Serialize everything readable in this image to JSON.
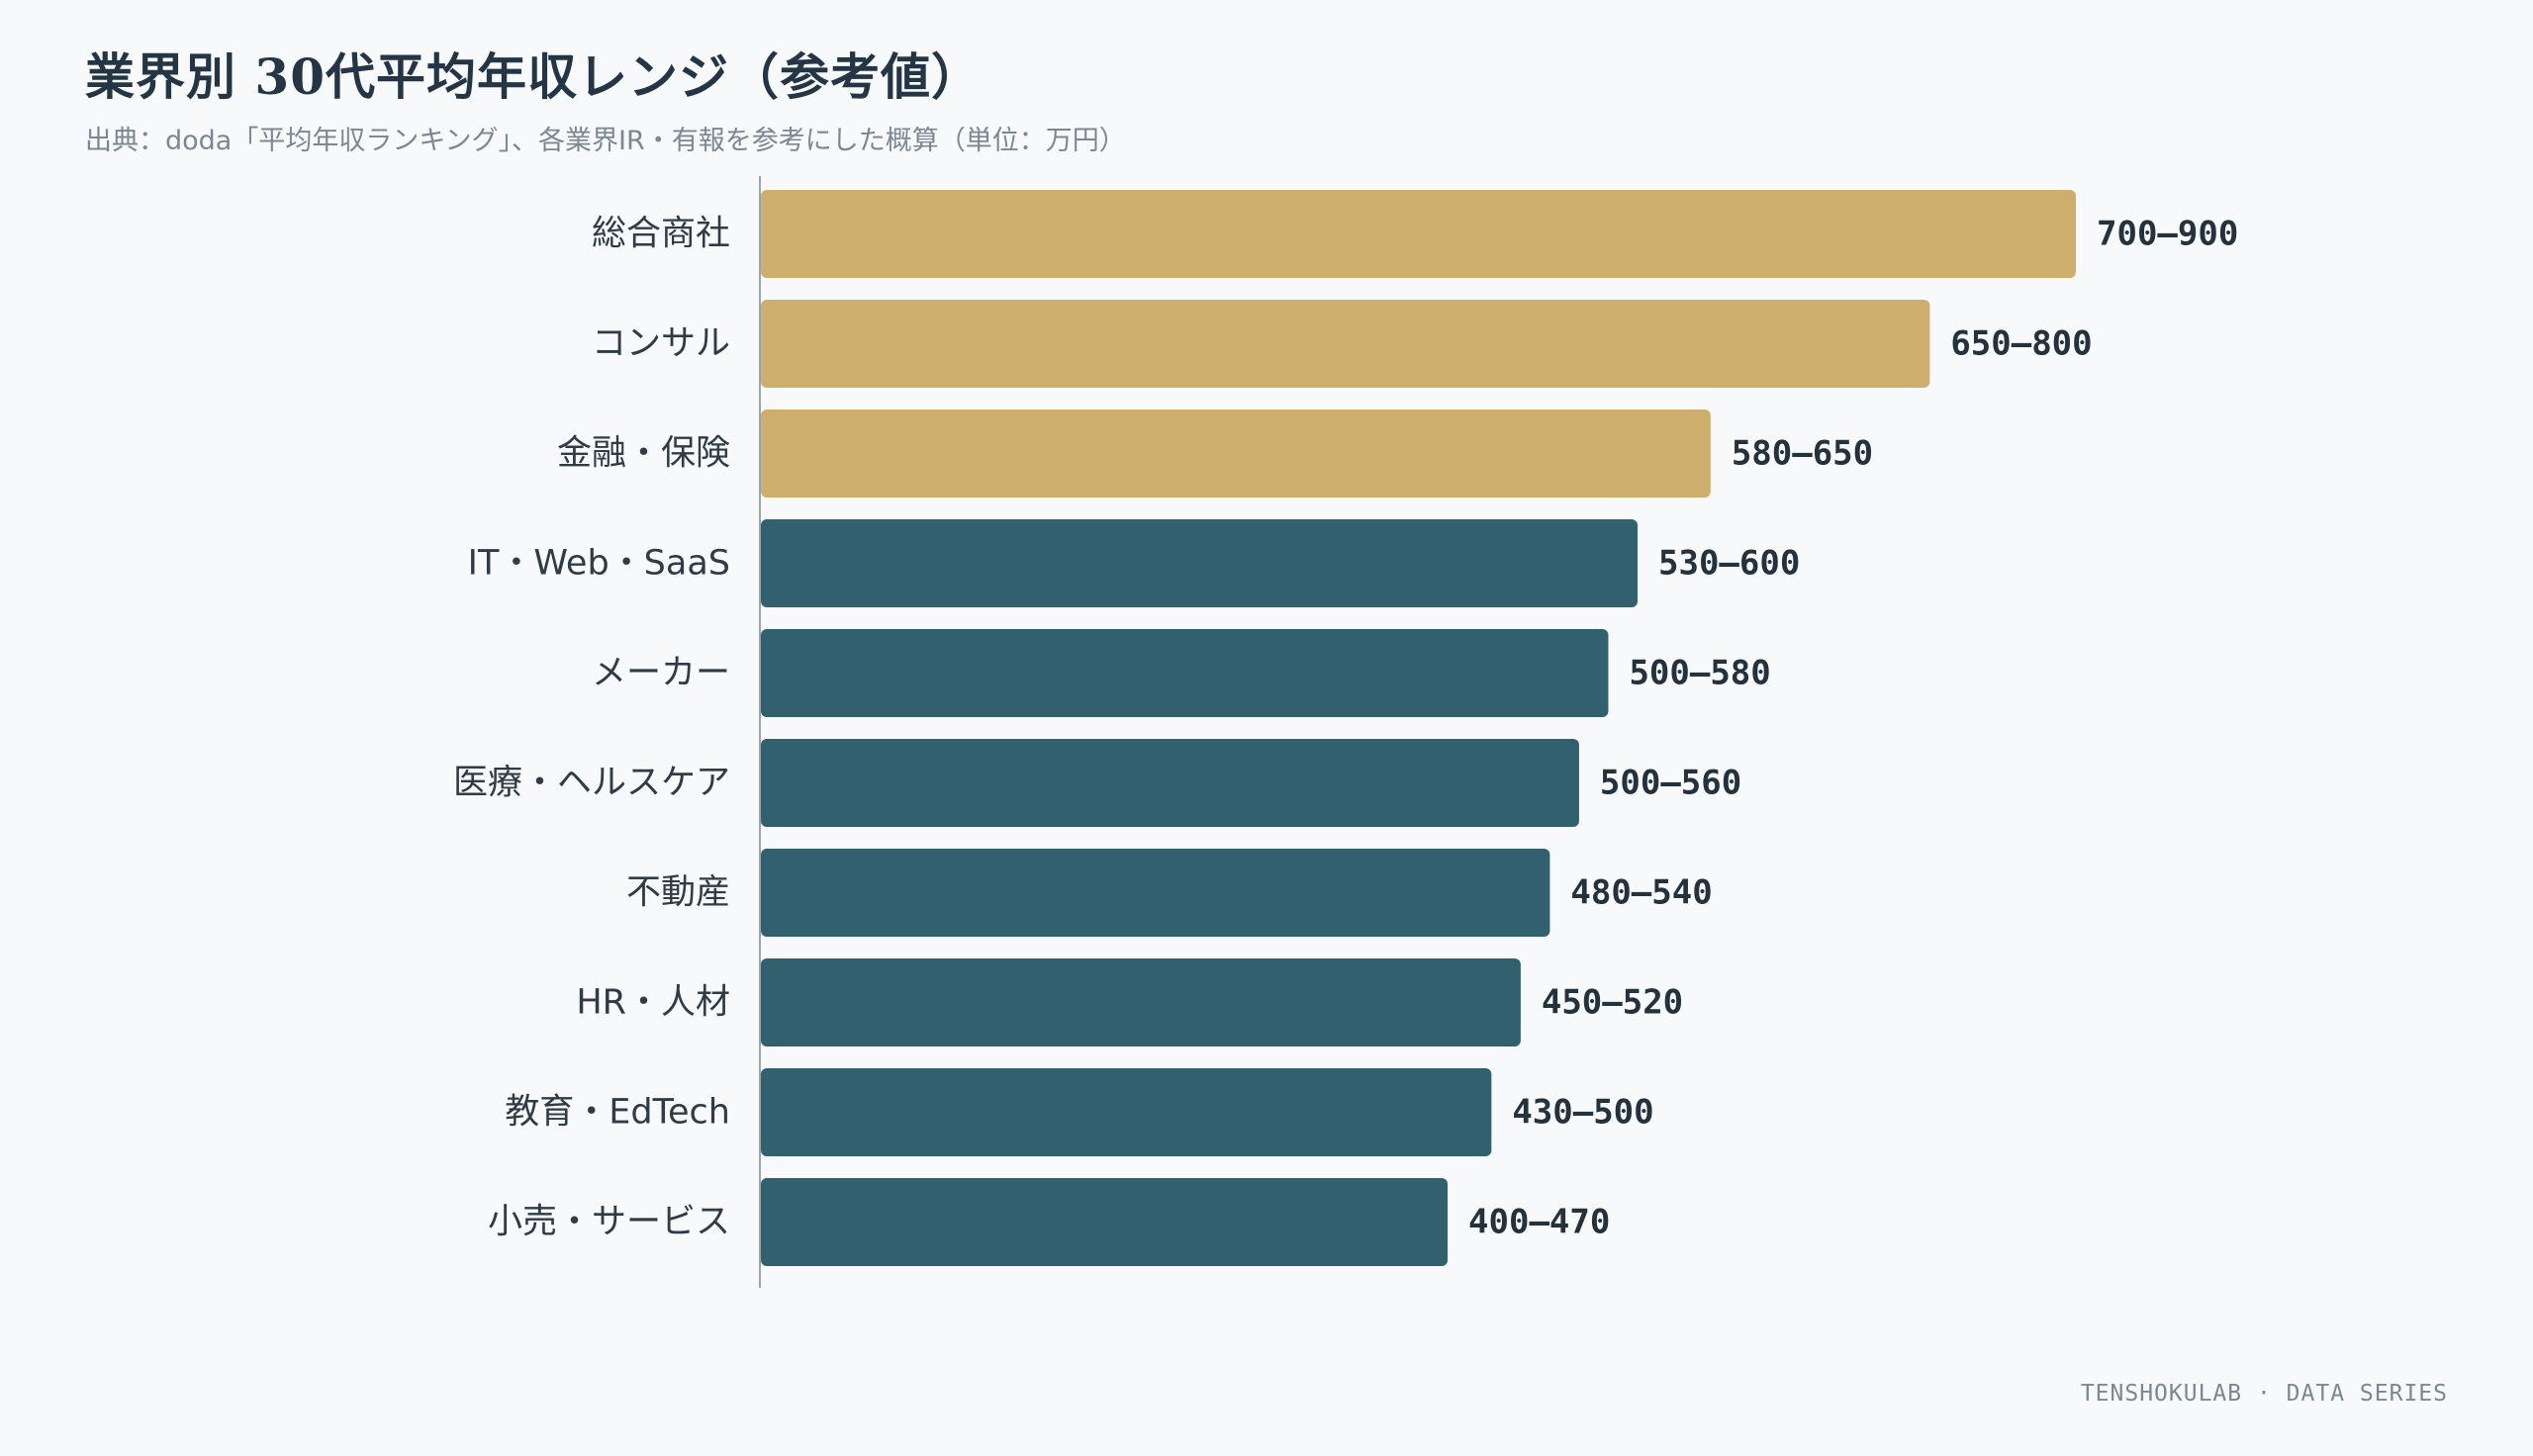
{
  "chart_data": {
    "type": "bar",
    "orientation": "horizontal",
    "title": "業界別 30代平均年収レンジ（参考値）",
    "subtitle": "出典：doda「平均年収ランキング」、各業界IR・有報を参考にした概算（単位：万円）",
    "categories": [
      "総合商社",
      "コンサル",
      "金融・保険",
      "IT・Web・SaaS",
      "メーカー",
      "医療・ヘルスケア",
      "不動産",
      "HR・人材",
      "教育・EdTech",
      "小売・サービス"
    ],
    "ranges": [
      [
        700,
        900
      ],
      [
        650,
        800
      ],
      [
        580,
        650
      ],
      [
        530,
        600
      ],
      [
        500,
        580
      ],
      [
        500,
        560
      ],
      [
        480,
        540
      ],
      [
        450,
        520
      ],
      [
        430,
        500
      ],
      [
        400,
        470
      ]
    ],
    "value_labels": [
      "700–900",
      "650–800",
      "580–650",
      "530–600",
      "500–580",
      "500–560",
      "480–540",
      "450–520",
      "430–500",
      "400–470"
    ],
    "highlight_count": 3,
    "colors": {
      "highlight": "#cdae6c",
      "default": "#31606f",
      "axis": "#9aa4ad"
    },
    "xlim": [
      0,
      900
    ],
    "grid": false,
    "legend": "none"
  },
  "footer": "TENSHOKULAB · DATA SERIES"
}
